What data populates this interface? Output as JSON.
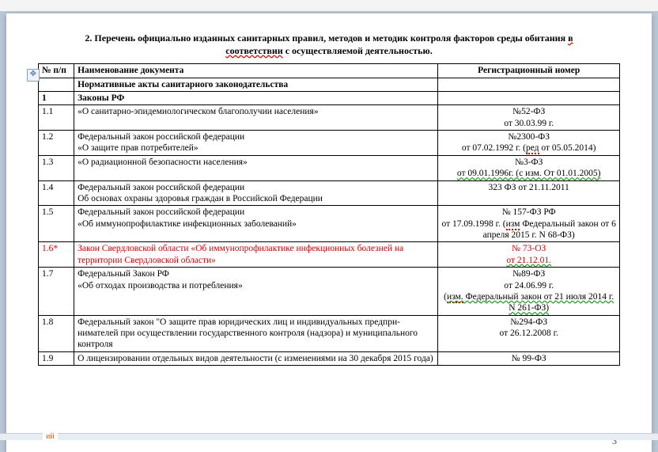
{
  "title_line1": "2. Перечень официально изданных санитарных правил, методов и методик контроля факторов среды обитания",
  "title_word_err": "в",
  "title_line2_pre": "",
  "title_line2_err": "соответствии",
  "title_line2_post": " с осуществляемой деятельностью.",
  "headers": {
    "num": "№ п/п",
    "name": "Наименование документа",
    "reg": "Регистрационный номер"
  },
  "section1": "Нормативные акты санитарного законодательства",
  "row1": {
    "num": "1",
    "name": "Законы РФ",
    "reg": ""
  },
  "row11": {
    "num": "1.1",
    "name": "«О санитарно-эпидемиологическом благополучии населения»",
    "reg1": "№52-ФЗ",
    "reg2": "от 30.03.99 г."
  },
  "row12": {
    "num": "1.2",
    "n1": "Федеральный закон российской федерации",
    "n2": "«О защите прав потребителей»",
    "r1": "№2300-ФЗ",
    "r2a": "от 07.02.1992 г. (",
    "r2b": "ред",
    "r2c": " от 05.05.2014)"
  },
  "row13": {
    "num": "1.3",
    "name": "«О радиационной безопасности населения»",
    "r1": "№3-ФЗ",
    "r2": "от 09.01.1996г. (с изм. От 01.01.2005)"
  },
  "row14": {
    "num": "1.4",
    "n1": "Федеральный закон российской федерации",
    "n2": "Об основах охраны здоровья граждан в Российской Федерации",
    "r1": "323 ФЗ от 21.11.2011"
  },
  "row15": {
    "num": "1.5",
    "n1": "Федеральный закон российской федерации",
    "n2": "«Об иммунопрофилактике инфекционных заболеваний»",
    "r1": "№ 157-ФЗ РФ",
    "r2": "от 17.09.1998 г. (",
    "r2b": "изм",
    "r2c": " Федераль­ный закон от 6 апреля 2015 г. N 68-ФЗ)"
  },
  "row16": {
    "num": "1.6*",
    "name": "Закон Свердловской области «Об иммунопрофилактике инфекционных болезней на территории Свердловской области»",
    "r1": "№ 73-ОЗ",
    "r2": "от 21.12.01."
  },
  "row17": {
    "num": "1.7",
    "n1": "Федеральный  Закон РФ",
    "n2": "«Об отходах производства и потребления»",
    "r1": "№89-ФЗ",
    "r2": "от 24.06.99 г.",
    "r3a": "(",
    "r3b": "изм.",
    "r3c": " Федеральный закон от 21 июля 2014 г. N 261-ФЗ)"
  },
  "row18": {
    "num": "1.8",
    "name": "Федеральный закон \"О защите прав юридических лиц и индивидуальных предпри­нимателей при осуществлении государственного контроля (надзора) и муниципаль­ного контроля",
    "r1": "№294-ФЗ",
    "r2": "от 26.12.2008 г."
  },
  "row19": {
    "num": "1.9",
    "name": "О лицензировании отдельных видов деятельности (с изменениями на 30 декабря 2015 года)",
    "r1": "№ 99-ФЗ"
  },
  "pagenum": "3",
  "tab": "ий"
}
